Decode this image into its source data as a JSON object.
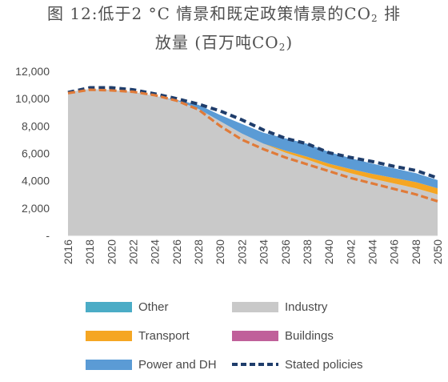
{
  "title": {
    "line1": "图 12:低于2 °C 情景和既定政策情景的CO",
    "line1_sub": "2",
    "line1_tail": " 排",
    "line2": "放量 (百万吨CO",
    "line2_sub": "2",
    "line2_tail": ")"
  },
  "chart_data": {
    "type": "area",
    "title": "图 12:低于2 °C 情景和既定政策情景的CO2 排放量 (百万吨CO2)",
    "xlabel": "",
    "ylabel": "",
    "x": [
      2016,
      2018,
      2020,
      2022,
      2024,
      2026,
      2028,
      2030,
      2032,
      2034,
      2036,
      2038,
      2040,
      2042,
      2044,
      2046,
      2048,
      2050
    ],
    "x_tick_labels": [
      "2016",
      "2018",
      "2020",
      "2022",
      "2024",
      "2026",
      "2028",
      "2030",
      "2032",
      "2034",
      "2036",
      "2038",
      "2040",
      "2042",
      "2044",
      "2046",
      "2048",
      "2050"
    ],
    "ylim": [
      0,
      12000
    ],
    "y_ticks": [
      0,
      2000,
      4000,
      6000,
      8000,
      10000,
      12000
    ],
    "y_tick_labels": [
      "-",
      "2,000",
      "4,000",
      "6,000",
      "8,000",
      "10,000",
      "12,000"
    ],
    "grid": false,
    "legend_position": "bottom",
    "stacked": true,
    "series": [
      {
        "name": "Other",
        "color": "#4bacc6",
        "values": [
          0,
          0,
          0,
          0,
          0,
          0,
          0,
          0,
          0,
          0,
          0,
          0,
          0,
          0,
          0,
          0,
          0,
          0
        ]
      },
      {
        "name": "Industry",
        "color": "#c9c9c9",
        "values": [
          10500,
          10700,
          10650,
          10500,
          10200,
          9850,
          9250,
          8350,
          7450,
          6700,
          6050,
          5550,
          5000,
          4550,
          4150,
          3800,
          3450,
          3000
        ]
      },
      {
        "name": "Transport",
        "color": "#f5a623",
        "values": [
          0,
          0,
          0,
          0,
          0,
          0,
          0,
          0,
          0,
          0,
          150,
          200,
          250,
          300,
          350,
          400,
          450,
          450
        ]
      },
      {
        "name": "Buildings",
        "color": "#c0609a",
        "values": [
          0,
          0,
          0,
          0,
          0,
          0,
          0,
          0,
          0,
          0,
          0,
          0,
          0,
          0,
          0,
          0,
          0,
          0
        ]
      },
      {
        "name": "Power and DH",
        "color": "#5b9bd5",
        "values": [
          0,
          0,
          0,
          0,
          0,
          50,
          300,
          450,
          700,
          800,
          900,
          950,
          850,
          800,
          750,
          700,
          650,
          600
        ]
      }
    ],
    "lines": [
      {
        "name": "Stated policies",
        "color": "#1f3d6b",
        "style": "dashed",
        "values": [
          10450,
          10800,
          10800,
          10650,
          10350,
          10000,
          9600,
          9100,
          8450,
          7700,
          7100,
          6700,
          6050,
          5700,
          5400,
          5050,
          4750,
          4200
        ]
      },
      {
        "name": "",
        "color": "#e07b39",
        "style": "dashed",
        "values": [
          10400,
          10650,
          10600,
          10500,
          10250,
          9850,
          9200,
          8000,
          7000,
          6300,
          5700,
          5200,
          4700,
          4200,
          3800,
          3400,
          3000,
          2500
        ]
      }
    ]
  },
  "legend": [
    {
      "label": "Other",
      "color": "#4bacc6",
      "kind": "box"
    },
    {
      "label": "Industry",
      "color": "#c9c9c9",
      "kind": "box"
    },
    {
      "label": "Transport",
      "color": "#f5a623",
      "kind": "box"
    },
    {
      "label": "Buildings",
      "color": "#c0609a",
      "kind": "box"
    },
    {
      "label": "Power and DH",
      "color": "#5b9bd5",
      "kind": "box"
    },
    {
      "label": "Stated policies",
      "color": "#1f3d6b",
      "kind": "dash"
    }
  ]
}
